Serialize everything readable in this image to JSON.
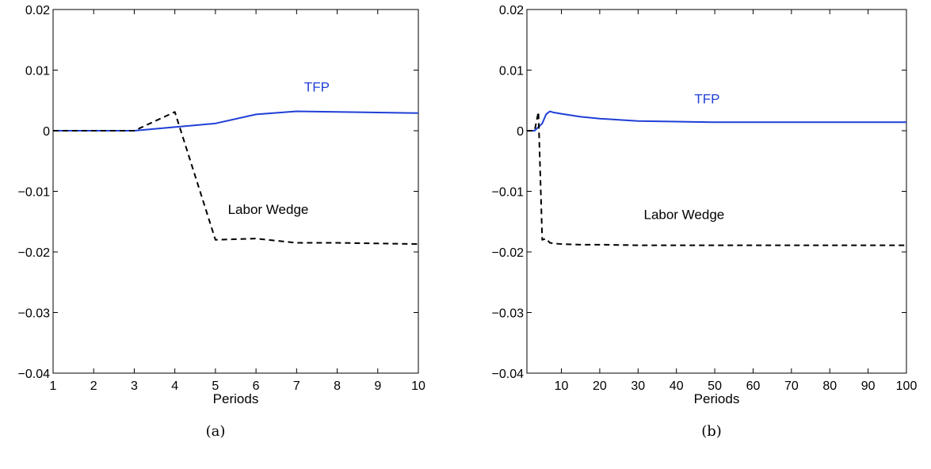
{
  "chart_data": [
    {
      "type": "line",
      "caption": "(a)",
      "xlabel": "Periods",
      "ylabel": "",
      "xlim": [
        1,
        10
      ],
      "ylim": [
        -0.04,
        0.02
      ],
      "xticks": [
        1,
        2,
        3,
        4,
        5,
        6,
        7,
        8,
        9,
        10
      ],
      "xtick_labels": [
        "1",
        "2",
        "3",
        "4",
        "5",
        "6",
        "7",
        "8",
        "9",
        "10"
      ],
      "yticks": [
        -0.04,
        -0.03,
        -0.02,
        -0.01,
        0,
        0.01,
        0.02
      ],
      "ytick_labels": [
        "−0.04",
        "−0.03",
        "−0.02",
        "−0.01",
        "0",
        "0.01",
        "0.02"
      ],
      "grid": false,
      "series": [
        {
          "name": "TFP",
          "color": "#1f3fd6",
          "dash": "solid",
          "label_at": [
            7.5,
            0.0065
          ],
          "x": [
            1,
            2,
            3,
            4,
            5,
            6,
            7,
            8,
            9,
            10
          ],
          "y": [
            0,
            0,
            0,
            0.0006,
            0.0012,
            0.0027,
            0.0032,
            0.0031,
            0.003,
            0.0029
          ]
        },
        {
          "name": "Labor Wedge",
          "color": "#000000",
          "dash": "dashed",
          "label_at": [
            6.3,
            -0.0137
          ],
          "x": [
            1,
            2,
            3,
            4,
            5,
            6,
            7,
            8,
            9,
            10
          ],
          "y": [
            0,
            0,
            0,
            0.0031,
            -0.018,
            -0.0178,
            -0.0185,
            -0.0185,
            -0.0186,
            -0.0187
          ]
        }
      ]
    },
    {
      "type": "line",
      "caption": "(b)",
      "xlabel": "Periods",
      "ylabel": "",
      "xlim": [
        1,
        100
      ],
      "ylim": [
        -0.04,
        0.02
      ],
      "xticks": [
        10,
        20,
        30,
        40,
        50,
        60,
        70,
        80,
        90,
        100
      ],
      "xtick_labels": [
        "10",
        "20",
        "30",
        "40",
        "50",
        "60",
        "70",
        "80",
        "90",
        "100"
      ],
      "yticks": [
        -0.04,
        -0.03,
        -0.02,
        -0.01,
        0,
        0.01,
        0.02
      ],
      "ytick_labels": [
        "−0.04",
        "−0.03",
        "−0.02",
        "−0.01",
        "0",
        "0.01",
        "0.02"
      ],
      "grid": false,
      "series": [
        {
          "name": "TFP",
          "color": "#1f3fd6",
          "dash": "solid",
          "label_at": [
            48,
            0.0045
          ],
          "x": [
            1,
            2,
            3,
            4,
            5,
            6,
            7,
            8,
            10,
            12,
            15,
            20,
            25,
            30,
            40,
            50,
            60,
            70,
            80,
            90,
            100
          ],
          "y": [
            0,
            0,
            0,
            0.0006,
            0.0012,
            0.0027,
            0.0032,
            0.003,
            0.0028,
            0.0026,
            0.0023,
            0.002,
            0.0018,
            0.0016,
            0.0015,
            0.0014,
            0.0014,
            0.0014,
            0.0014,
            0.0014,
            0.0014
          ]
        },
        {
          "name": "Labor Wedge",
          "color": "#000000",
          "dash": "dashed",
          "label_at": [
            42,
            -0.0146
          ],
          "x": [
            1,
            2,
            3,
            4,
            5,
            6,
            7,
            8,
            10,
            15,
            20,
            30,
            40,
            50,
            60,
            70,
            80,
            90,
            100
          ],
          "y": [
            0,
            0,
            0,
            0.0031,
            -0.018,
            -0.0178,
            -0.0185,
            -0.0186,
            -0.0187,
            -0.0188,
            -0.0188,
            -0.0189,
            -0.0189,
            -0.0189,
            -0.0189,
            -0.0189,
            -0.0189,
            -0.0189,
            -0.0189
          ]
        }
      ]
    }
  ]
}
